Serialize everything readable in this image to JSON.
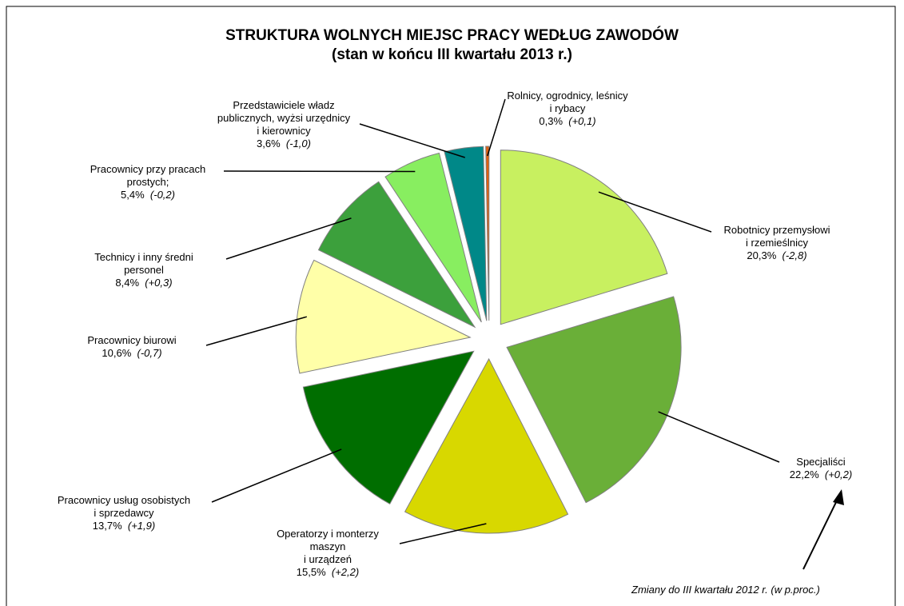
{
  "chart_data": {
    "type": "pie",
    "title": "STRUKTURA WOLNYCH MIEJSC PRACY WEDŁUG ZAWODÓW",
    "subtitle": "(stan w końcu III kwartału 2013 r.)",
    "categories": [
      "Robotnicy przemysłowi\ni rzemieślnicy",
      "Specjaliści",
      "Operatorzy i monterzy\nmaszyn\ni urządzeń",
      "Pracownicy usług osobistych\ni sprzedawcy",
      "Pracownicy biurowi",
      "Technicy i inny średni\npersonel",
      "Pracownicy przy pracach\nprostych;",
      "Przedstawiciele władz\npublicznych, wyżsi urzędnicy\ni kierownicy",
      "Rolnicy, ogrodnicy, leśnicy\ni rybacy"
    ],
    "values": [
      20.3,
      22.2,
      15.5,
      13.7,
      10.6,
      8.4,
      5.4,
      3.6,
      0.3
    ],
    "value_labels": [
      "20,3%",
      "22,2%",
      "15,5%",
      "13,7%",
      "10,6%",
      "8,4%",
      "5,4%",
      "3,6%",
      "0,3%"
    ],
    "changes": [
      -2.8,
      0.2,
      2.2,
      1.9,
      -0.7,
      0.3,
      -0.2,
      -1.0,
      0.1
    ],
    "change_labels": [
      "(-2,8)",
      "(+0,2)",
      "(+2,2)",
      "(+1,9)",
      "(-0,7)",
      "(+0,3)",
      "(-0,2)",
      "(-1,0)",
      "(+0,1)"
    ],
    "colors": [
      "#c8f060",
      "#6aaf38",
      "#d8d800",
      "#006e00",
      "#ffffa8",
      "#3ca03c",
      "#88ee60",
      "#008888",
      "#e06010"
    ],
    "annotation": "Zmiany do III kwartału 2012 r. (w p.proc.)"
  }
}
